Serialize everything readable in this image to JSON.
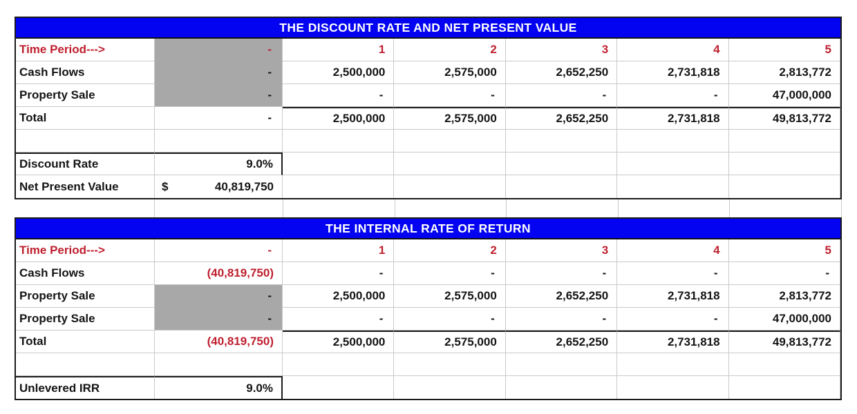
{
  "colors": {
    "header_bg": "#0303F2",
    "header_text": "#FFFFFF",
    "accent_red": "#BE1F2E",
    "gray_fill": "#A8A8A8",
    "grid_line": "#C9C9C9",
    "border_dark": "#1A1A1A"
  },
  "npv_table": {
    "title": "THE DISCOUNT RATE AND NET PRESENT VALUE",
    "rows": [
      {
        "label": "Time Period--->",
        "label_red": true,
        "cells": [
          {
            "t": "-",
            "red": true,
            "gray": true,
            "dash": true,
            "join": true
          },
          {
            "t": "1",
            "red": true
          },
          {
            "t": "2",
            "red": true
          },
          {
            "t": "3",
            "red": true
          },
          {
            "t": "4",
            "red": true
          },
          {
            "t": "5",
            "red": true
          }
        ]
      },
      {
        "label": "Cash Flows",
        "cells": [
          {
            "t": "-",
            "gray": true,
            "dash": true,
            "join": true
          },
          {
            "t": "2,500,000"
          },
          {
            "t": "2,575,000"
          },
          {
            "t": "2,652,250"
          },
          {
            "t": "2,731,818"
          },
          {
            "t": "2,813,772"
          }
        ]
      },
      {
        "label": "Property Sale",
        "cells": [
          {
            "t": "-",
            "gray": true,
            "dash": true
          },
          {
            "t": "-",
            "dash": true
          },
          {
            "t": "-",
            "dash": true
          },
          {
            "t": "-",
            "dash": true
          },
          {
            "t": "-",
            "dash": true
          },
          {
            "t": "47,000,000"
          }
        ]
      },
      {
        "label": "Total",
        "cells": [
          {
            "t": "-",
            "dash": true
          },
          {
            "t": "2,500,000",
            "thickTop": true
          },
          {
            "t": "2,575,000",
            "thickTop": true
          },
          {
            "t": "2,652,250",
            "thickTop": true
          },
          {
            "t": "2,731,818",
            "thickTop": true
          },
          {
            "t": "49,813,772",
            "thickTop": true
          }
        ]
      },
      {
        "label": "",
        "cells": [
          {},
          {},
          {},
          {},
          {},
          {}
        ]
      },
      {
        "label": "Discount Rate",
        "block": "top",
        "cells": [
          {
            "t": "9.0%"
          },
          {},
          {},
          {},
          {},
          {}
        ]
      },
      {
        "label": "Net Present Value",
        "block": "bottom",
        "cells": [
          {
            "t": "40,819,750",
            "prefix": "$"
          },
          {},
          {},
          {},
          {},
          {}
        ]
      }
    ]
  },
  "irr_table": {
    "title": "THE INTERNAL RATE OF RETURN",
    "rows": [
      {
        "label": "Time Period--->",
        "label_red": true,
        "cells": [
          {
            "t": "-",
            "red": true,
            "dash": true
          },
          {
            "t": "1",
            "red": true
          },
          {
            "t": "2",
            "red": true
          },
          {
            "t": "3",
            "red": true
          },
          {
            "t": "4",
            "red": true
          },
          {
            "t": "5",
            "red": true
          }
        ]
      },
      {
        "label": "Cash Flows",
        "cells": [
          {
            "t": "(40,819,750)",
            "red": true
          },
          {
            "t": "-",
            "dash": true
          },
          {
            "t": "-",
            "dash": true
          },
          {
            "t": "-",
            "dash": true
          },
          {
            "t": "-",
            "dash": true
          },
          {
            "t": "-",
            "dash": true
          }
        ]
      },
      {
        "label": "Property Sale",
        "cells": [
          {
            "t": "-",
            "gray": true,
            "dash": true,
            "join": true
          },
          {
            "t": "2,500,000"
          },
          {
            "t": "2,575,000"
          },
          {
            "t": "2,652,250"
          },
          {
            "t": "2,731,818"
          },
          {
            "t": "2,813,772"
          }
        ]
      },
      {
        "label": "Property Sale",
        "cells": [
          {
            "t": "-",
            "gray": true,
            "dash": true
          },
          {
            "t": "-",
            "dash": true
          },
          {
            "t": "-",
            "dash": true
          },
          {
            "t": "-",
            "dash": true
          },
          {
            "t": "-",
            "dash": true
          },
          {
            "t": "47,000,000"
          }
        ]
      },
      {
        "label": "Total",
        "cells": [
          {
            "t": "(40,819,750)",
            "red": true
          },
          {
            "t": "2,500,000",
            "thickTop": true
          },
          {
            "t": "2,575,000",
            "thickTop": true
          },
          {
            "t": "2,652,250",
            "thickTop": true
          },
          {
            "t": "2,731,818",
            "thickTop": true
          },
          {
            "t": "49,813,772",
            "thickTop": true
          }
        ]
      },
      {
        "label": "",
        "cells": [
          {},
          {},
          {},
          {},
          {},
          {}
        ]
      },
      {
        "label": "Unlevered IRR",
        "block": "single",
        "cells": [
          {
            "t": "9.0%"
          },
          {},
          {},
          {},
          {},
          {}
        ]
      }
    ]
  }
}
